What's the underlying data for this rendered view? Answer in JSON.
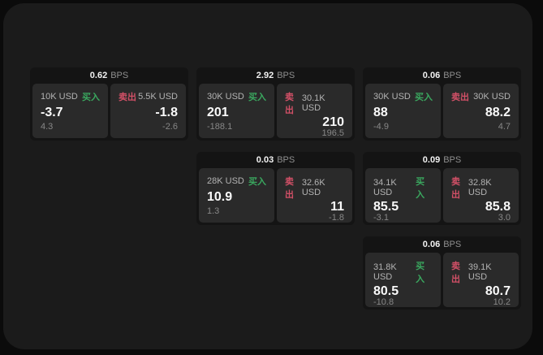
{
  "colors": {
    "buy_green": "#3aa85f",
    "sell_red": "#d25067",
    "panel_bg": "#1b1b1b",
    "card_bg": "#141414",
    "side_bg": "#2a2a2a"
  },
  "labels": {
    "buy": "买入",
    "sell": "卖出",
    "bps": "BPS"
  },
  "cards": [
    {
      "col": "1",
      "spread_bps": "0.62",
      "buy": {
        "size": "10K USD",
        "price": "-3.7",
        "sub": "4.3"
      },
      "sell": {
        "size": "5.5K USD",
        "price": "-1.8",
        "sub": "-2.6"
      }
    },
    {
      "col": "2",
      "spread_bps": "2.92",
      "buy": {
        "size": "30K USD",
        "price": "201",
        "sub": "-188.1"
      },
      "sell": {
        "size": "30.1K USD",
        "price": "210",
        "sub": "196.5"
      }
    },
    {
      "col": "3",
      "spread_bps": "0.06",
      "buy": {
        "size": "30K USD",
        "price": "88",
        "sub": "-4.9"
      },
      "sell": {
        "size": "30K USD",
        "price": "88.2",
        "sub": "4.7"
      }
    },
    {
      "col": "2",
      "spread_bps": "0.03",
      "buy": {
        "size": "28K USD",
        "price": "10.9",
        "sub": "1.3"
      },
      "sell": {
        "size": "32.6K USD",
        "price": "11",
        "sub": "-1.8"
      }
    },
    {
      "col": "3",
      "spread_bps": "0.09",
      "buy": {
        "size": "34.1K USD",
        "price": "85.5",
        "sub": "-3.1"
      },
      "sell": {
        "size": "32.8K USD",
        "price": "85.8",
        "sub": "3.0"
      }
    },
    {
      "col": "3",
      "spread_bps": "0.06",
      "buy": {
        "size": "31.8K USD",
        "price": "80.5",
        "sub": "-10.8"
      },
      "sell": {
        "size": "39.1K USD",
        "price": "80.7",
        "sub": "10.2"
      }
    }
  ]
}
